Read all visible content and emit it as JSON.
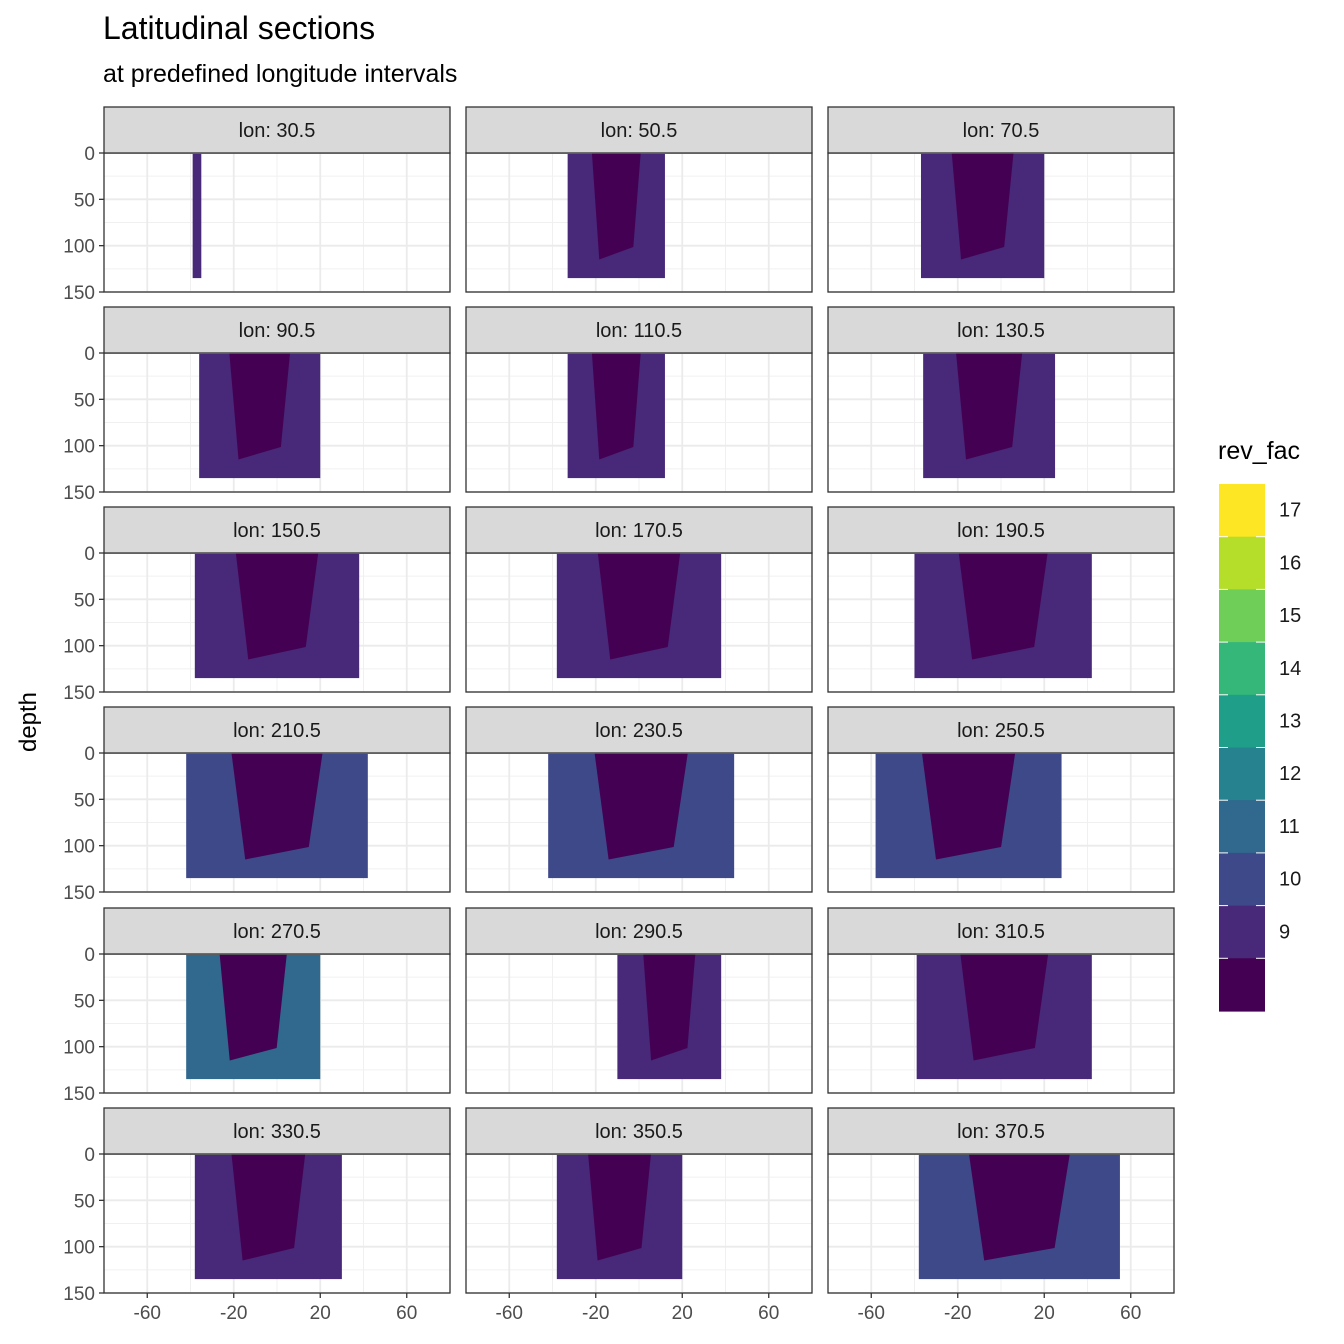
{
  "chart_data": {
    "type": "heatmap",
    "title": "Latitudinal sections",
    "subtitle": "at predefined longitude intervals",
    "xlabel": "",
    "ylabel": "depth",
    "x_ticks": [
      -60,
      -20,
      20,
      60
    ],
    "y_ticks": [
      0,
      50,
      100,
      150
    ],
    "xlim": [
      -80,
      80
    ],
    "ylim": [
      150,
      0
    ],
    "y_reversed": true,
    "grid": true,
    "legend": {
      "title": "rev_fac",
      "position": "right",
      "labels": [
        "17",
        "16",
        "15",
        "14",
        "13",
        "12",
        "11",
        "10",
        "9"
      ],
      "colors": [
        "#fde725",
        "#b5de2b",
        "#6ece58",
        "#35b779",
        "#1f9e89",
        "#26828e",
        "#31688e",
        "#3e4989",
        "#482878",
        "#440154"
      ]
    },
    "facet_label_prefix": "lon: ",
    "facets": [
      {
        "lon": "30.5",
        "lat_range": [
          -39,
          -35
        ],
        "depth_max": 135,
        "fill": 9.5
      },
      {
        "lon": "50.5",
        "lat_range": [
          -33,
          12
        ],
        "depth_max": 135,
        "fill": 9.8
      },
      {
        "lon": "70.5",
        "lat_range": [
          -37,
          20
        ],
        "depth_max": 135,
        "fill": 9.8
      },
      {
        "lon": "90.5",
        "lat_range": [
          -36,
          20
        ],
        "depth_max": 135,
        "fill": 9.8
      },
      {
        "lon": "110.5",
        "lat_range": [
          -33,
          12
        ],
        "depth_max": 135,
        "fill": 9.9
      },
      {
        "lon": "130.5",
        "lat_range": [
          -36,
          25
        ],
        "depth_max": 135,
        "fill": 9.6
      },
      {
        "lon": "150.5",
        "lat_range": [
          -38,
          38
        ],
        "depth_max": 135,
        "fill": 9.4
      },
      {
        "lon": "170.5",
        "lat_range": [
          -38,
          38
        ],
        "depth_max": 135,
        "fill": 9.4
      },
      {
        "lon": "190.5",
        "lat_range": [
          -40,
          42
        ],
        "depth_max": 135,
        "fill": 9.8
      },
      {
        "lon": "210.5",
        "lat_range": [
          -42,
          42
        ],
        "depth_max": 135,
        "fill": 10.1
      },
      {
        "lon": "230.5",
        "lat_range": [
          -42,
          44
        ],
        "depth_max": 135,
        "fill": 10.2
      },
      {
        "lon": "250.5",
        "lat_range": [
          -58,
          28
        ],
        "depth_max": 135,
        "fill": 10.1
      },
      {
        "lon": "270.5",
        "lat_range": [
          -42,
          20
        ],
        "depth_max": 135,
        "fill": 11.5
      },
      {
        "lon": "290.5",
        "lat_range": [
          -10,
          38
        ],
        "depth_max": 135,
        "fill": 9.4
      },
      {
        "lon": "310.5",
        "lat_range": [
          -39,
          42
        ],
        "depth_max": 135,
        "fill": 9.5
      },
      {
        "lon": "330.5",
        "lat_range": [
          -38,
          30
        ],
        "depth_max": 135,
        "fill": 9.6
      },
      {
        "lon": "350.5",
        "lat_range": [
          -38,
          20
        ],
        "depth_max": 135,
        "fill": 9.6
      },
      {
        "lon": "370.5",
        "lat_range": [
          -38,
          55
        ],
        "depth_max": 135,
        "fill": 10.0
      }
    ]
  }
}
